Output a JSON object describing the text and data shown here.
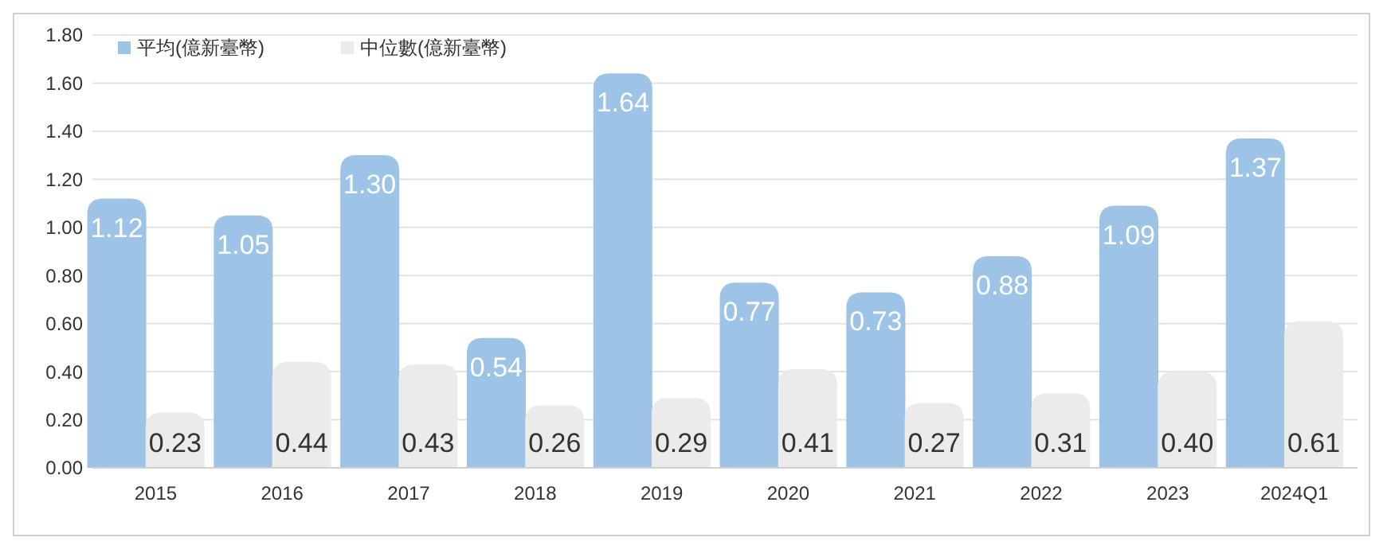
{
  "chart_data": {
    "type": "bar",
    "categories": [
      "2015",
      "2016",
      "2017",
      "2018",
      "2019",
      "2020",
      "2021",
      "2022",
      "2023",
      "2024Q1"
    ],
    "series": [
      {
        "name": "平均(億新臺幣)",
        "color": "#9dc3e6",
        "values": [
          1.12,
          1.05,
          1.3,
          0.54,
          1.64,
          0.77,
          0.73,
          0.88,
          1.09,
          1.37
        ],
        "value_labels": [
          "1.12",
          "1.05",
          "1.30",
          "0.54",
          "1.64",
          "0.77",
          "0.73",
          "0.88",
          "1.09",
          "1.37"
        ]
      },
      {
        "name": "中位數(億新臺幣)",
        "color": "#ebebeb",
        "values": [
          0.23,
          0.44,
          0.43,
          0.26,
          0.29,
          0.41,
          0.27,
          0.31,
          0.4,
          0.61
        ],
        "value_labels": [
          "0.23",
          "0.44",
          "0.43",
          "0.26",
          "0.29",
          "0.41",
          "0.27",
          "0.31",
          "0.40",
          "0.61"
        ]
      }
    ],
    "ylim": [
      0,
      1.8
    ],
    "yticks": [
      {
        "value": 0,
        "label": "0.00"
      },
      {
        "value": 0.2,
        "label": "0.20"
      },
      {
        "value": 0.4,
        "label": "0.40"
      },
      {
        "value": 0.6,
        "label": "0.60"
      },
      {
        "value": 0.8,
        "label": "0.80"
      },
      {
        "value": 1,
        "label": "1.00"
      },
      {
        "value": 1.2,
        "label": "1.20"
      },
      {
        "value": 1.4,
        "label": "1.40"
      },
      {
        "value": 1.6,
        "label": "1.60"
      },
      {
        "value": 1.8,
        "label": "1.80"
      }
    ],
    "grid": "y",
    "legend": "top left"
  }
}
